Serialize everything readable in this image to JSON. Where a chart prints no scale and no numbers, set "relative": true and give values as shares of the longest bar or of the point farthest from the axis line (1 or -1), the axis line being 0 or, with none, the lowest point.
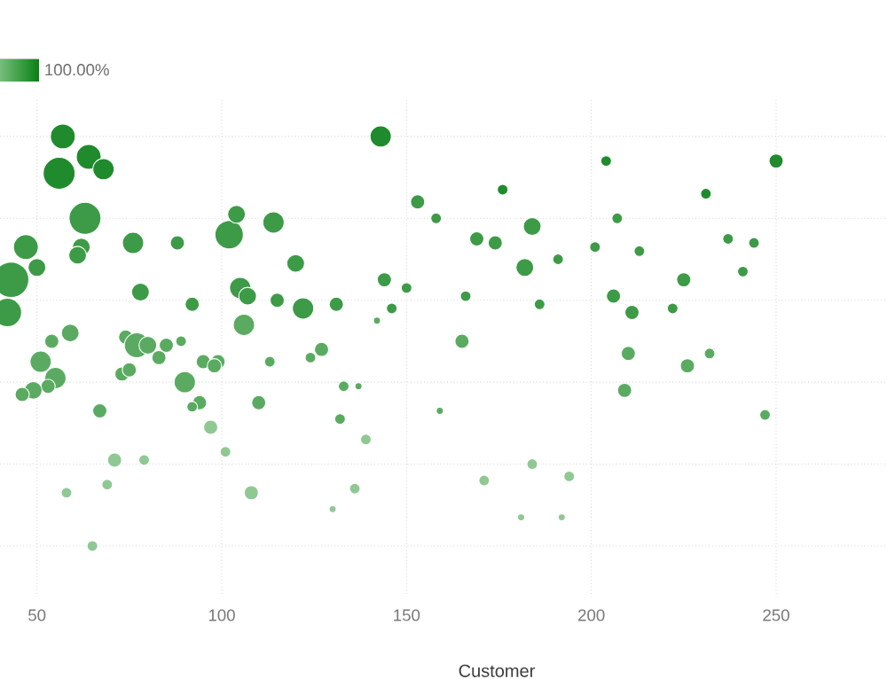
{
  "chart_data": {
    "type": "bubble",
    "xlabel": "Customer",
    "relative": true,
    "xlim": [
      40,
      280
    ],
    "xticks": [
      50,
      100,
      150,
      200,
      250
    ],
    "tick_labels": "x",
    "grid": true,
    "annotations": [
      "100.00%"
    ],
    "x": [
      57,
      64,
      56,
      68,
      143,
      63,
      47,
      62,
      61,
      50,
      43,
      76,
      88,
      102,
      104,
      114,
      120,
      78,
      105,
      107,
      92,
      115,
      122,
      131,
      144,
      150,
      146,
      142,
      106,
      153,
      158,
      42,
      59,
      54,
      51,
      55,
      53,
      49,
      46,
      74,
      77,
      80,
      85,
      89,
      83,
      73,
      75,
      95,
      99,
      98,
      90,
      94,
      92,
      97,
      67,
      113,
      124,
      127,
      110,
      133,
      137,
      132,
      139,
      159,
      101,
      71,
      79,
      58,
      69,
      108,
      136,
      130,
      65,
      204,
      250,
      176,
      231,
      207,
      169,
      174,
      184,
      191,
      182,
      201,
      213,
      237,
      244,
      225,
      241,
      166,
      186,
      206,
      211,
      222,
      165,
      210,
      226,
      232,
      209,
      247,
      171,
      184,
      194,
      181,
      192
    ],
    "values": [
      1.0,
      0.95,
      0.91,
      0.92,
      1.0,
      0.8,
      0.73,
      0.73,
      0.71,
      0.68,
      0.65,
      0.74,
      0.74,
      0.76,
      0.81,
      0.79,
      0.69,
      0.62,
      0.63,
      0.61,
      0.59,
      0.6,
      0.58,
      0.59,
      0.65,
      0.63,
      0.58,
      0.55,
      0.54,
      0.84,
      0.8,
      0.57,
      0.52,
      0.5,
      0.45,
      0.41,
      0.39,
      0.38,
      0.37,
      0.51,
      0.49,
      0.49,
      0.49,
      0.5,
      0.46,
      0.42,
      0.43,
      0.45,
      0.45,
      0.44,
      0.4,
      0.35,
      0.34,
      0.29,
      0.33,
      0.45,
      0.46,
      0.48,
      0.35,
      0.39,
      0.39,
      0.31,
      0.26,
      0.33,
      0.23,
      0.21,
      0.21,
      0.13,
      0.15,
      0.13,
      0.14,
      0.09,
      0.0,
      0.94,
      0.94,
      0.87,
      0.86,
      0.8,
      0.75,
      0.74,
      0.78,
      0.7,
      0.68,
      0.73,
      0.72,
      0.75,
      0.74,
      0.65,
      0.67,
      0.61,
      0.59,
      0.61,
      0.57,
      0.58,
      0.5,
      0.47,
      0.44,
      0.47,
      0.38,
      0.32,
      0.16,
      0.2,
      0.17,
      0.07,
      0.07
    ],
    "sizes": [
      0.49,
      0.49,
      0.81,
      0.36,
      0.36,
      0.81,
      0.49,
      0.25,
      0.25,
      0.25,
      1,
      0.36,
      0.16,
      0.64,
      0.25,
      0.36,
      0.25,
      0.25,
      0.36,
      0.25,
      0.16,
      0.16,
      0.36,
      0.16,
      0.16,
      0.09,
      0.09,
      0.04,
      0.36,
      0.16,
      0.09,
      0.64,
      0.25,
      0.16,
      0.36,
      0.36,
      0.16,
      0.25,
      0.16,
      0.16,
      0.49,
      0.25,
      0.16,
      0.09,
      0.16,
      0.16,
      0.16,
      0.16,
      0.16,
      0.16,
      0.36,
      0.16,
      0.09,
      0.16,
      0.16,
      0.09,
      0.09,
      0.16,
      0.16,
      0.09,
      0.04,
      0.09,
      0.09,
      0.04,
      0.09,
      0.16,
      0.09,
      0.09,
      0.09,
      0.16,
      0.09,
      0.04,
      0.09,
      0.09,
      0.16,
      0.09,
      0.09,
      0.09,
      0.16,
      0.16,
      0.25,
      0.09,
      0.25,
      0.09,
      0.09,
      0.09,
      0.09,
      0.16,
      0.09,
      0.09,
      0.09,
      0.16,
      0.16,
      0.09,
      0.16,
      0.16,
      0.16,
      0.09,
      0.16,
      0.09,
      0.09,
      0.09,
      0.09,
      0.04,
      0.04
    ],
    "colors": [
      "#1f8b2c",
      "#1f8b2c",
      "#1f8b2c",
      "#1f8b2c",
      "#1f8b2c",
      "#3d9a47",
      "#3d9a47",
      "#3d9a47",
      "#3d9a47",
      "#3d9a47",
      "#3d9a47",
      "#3d9a47",
      "#3d9a47",
      "#3d9a47",
      "#3d9a47",
      "#3d9a47",
      "#3d9a47",
      "#3d9a47",
      "#3d9a47",
      "#3d9a47",
      "#3d9a47",
      "#3d9a47",
      "#3d9a47",
      "#3d9a47",
      "#3d9a47",
      "#3d9a47",
      "#3d9a47",
      "#5aab61",
      "#5aab61",
      "#3d9a47",
      "#3d9a47",
      "#3d9a47",
      "#5aab61",
      "#5aab61",
      "#5aab61",
      "#5aab61",
      "#5aab61",
      "#5aab61",
      "#5aab61",
      "#5aab61",
      "#5aab61",
      "#5aab61",
      "#5aab61",
      "#5aab61",
      "#5aab61",
      "#5aab61",
      "#5aab61",
      "#5aab61",
      "#5aab61",
      "#5aab61",
      "#5aab61",
      "#5aab61",
      "#5aab61",
      "#8fc893",
      "#5aab61",
      "#5aab61",
      "#5aab61",
      "#5aab61",
      "#5aab61",
      "#5aab61",
      "#5aab61",
      "#5aab61",
      "#8fc893",
      "#5aab61",
      "#8fc893",
      "#8fc893",
      "#8fc893",
      "#8fc893",
      "#8fc893",
      "#8fc893",
      "#8fc893",
      "#8fc893",
      "#8fc893",
      "#1f8b2c",
      "#1f8b2c",
      "#1f8b2c",
      "#1f8b2c",
      "#3d9a47",
      "#3d9a47",
      "#3d9a47",
      "#3d9a47",
      "#3d9a47",
      "#3d9a47",
      "#3d9a47",
      "#3d9a47",
      "#3d9a47",
      "#3d9a47",
      "#3d9a47",
      "#3d9a47",
      "#3d9a47",
      "#3d9a47",
      "#3d9a47",
      "#3d9a47",
      "#3d9a47",
      "#5aab61",
      "#5aab61",
      "#5aab61",
      "#5aab61",
      "#5aab61",
      "#5aab61",
      "#8fc893",
      "#8fc893",
      "#8fc893",
      "#8fc893",
      "#8fc893"
    ]
  }
}
